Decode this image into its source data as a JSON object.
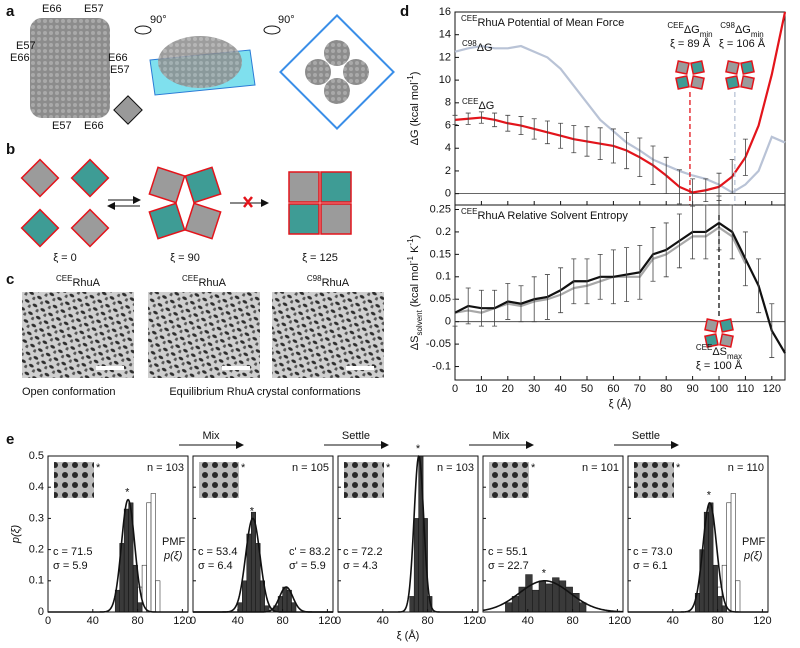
{
  "figure": {
    "panel_labels": [
      "a",
      "b",
      "c",
      "d",
      "e"
    ],
    "panel_a": {
      "residues": [
        "E66",
        "E57",
        "E57",
        "E66",
        "E66",
        "E57",
        "E57",
        "E66"
      ],
      "rotations": [
        "90°",
        "90°"
      ]
    },
    "panel_b": {
      "xi": [
        "ξ = 0",
        "ξ = 90",
        "ξ = 125"
      ]
    },
    "panel_c": {
      "titles": [
        [
          {
            "t": "CEE",
            "pos": "sup"
          },
          {
            "t": "RhuA"
          }
        ],
        [
          {
            "t": "CEE",
            "pos": "sup"
          },
          {
            "t": "RhuA"
          }
        ],
        [
          {
            "t": "C98",
            "pos": "sup"
          },
          {
            "t": "RhuA"
          }
        ]
      ],
      "captions": [
        "Open conformation",
        "Equilibrium RhuA crystal conformations"
      ]
    }
  },
  "chart_data": [
    {
      "type": "line",
      "title": [
        {
          "t": "CEE",
          "pos": "sup"
        },
        {
          "t": "RhuA Potential of Mean Force"
        }
      ],
      "ylabel": [
        {
          "t": "ΔG (kcal mol"
        },
        {
          "t": "-1",
          "pos": "sup"
        },
        {
          "t": ")"
        }
      ],
      "x": [
        0,
        5,
        10,
        15,
        20,
        25,
        30,
        35,
        40,
        45,
        50,
        55,
        60,
        65,
        70,
        75,
        80,
        85,
        90,
        95,
        100,
        105,
        110,
        115,
        120,
        125
      ],
      "xlim": [
        0,
        125
      ],
      "xticks": [
        0,
        10,
        20,
        30,
        40,
        50,
        60,
        70,
        80,
        90,
        100,
        110,
        120
      ],
      "xtick_labels": false,
      "ylim": [
        -1,
        16
      ],
      "yticks": [
        0,
        2,
        4,
        6,
        8,
        10,
        12,
        14,
        16
      ],
      "zero_line": true,
      "series": [
        {
          "label": [
            {
              "t": "C98",
              "pos": "sup"
            },
            {
              "t": "ΔG"
            }
          ],
          "color": "#b9c3d6",
          "values": [
            12.5,
            12.8,
            13.0,
            12.8,
            12.8,
            13.0,
            12.5,
            12.0,
            11.0,
            9.5,
            8.0,
            6.5,
            5.5,
            4.5,
            3.8,
            3.0,
            2.5,
            2.0,
            1.6,
            1.3,
            0.8,
            0.1,
            0.8,
            2.0,
            5.0,
            4.5
          ]
        },
        {
          "label": [
            {
              "t": "CEE",
              "pos": "sup"
            },
            {
              "t": "ΔG"
            }
          ],
          "color": "#e3141b",
          "values": [
            6.5,
            6.6,
            6.7,
            6.5,
            6.2,
            6.0,
            5.7,
            5.4,
            5.1,
            4.8,
            4.6,
            4.4,
            4.2,
            3.8,
            3.2,
            2.5,
            1.6,
            0.6,
            0.1,
            0.3,
            0.6,
            1.5,
            3.2,
            6.0,
            10.5,
            16
          ],
          "errors": [
            0.4,
            0.5,
            0.5,
            0.6,
            0.7,
            0.8,
            0.9,
            1.0,
            1.1,
            1.2,
            1.3,
            1.4,
            1.5,
            1.6,
            1.7,
            1.7,
            1.6,
            1.5,
            1.2,
            1.0,
            1.2,
            1.5,
            1.6,
            null,
            null,
            null
          ]
        }
      ],
      "annotations": [
        {
          "text": [
            [
              {
                "t": "CEE",
                "pos": "sup"
              },
              {
                "t": "ΔG"
              },
              {
                "t": "min",
                "pos": "sub"
              }
            ],
            [
              {
                "t": "ξ = 89 Å"
              }
            ]
          ],
          "x": 89,
          "color": "#e3141b"
        },
        {
          "text": [
            [
              {
                "t": "C98",
                "pos": "sup"
              },
              {
                "t": "ΔG"
              },
              {
                "t": "min",
                "pos": "sub"
              }
            ],
            [
              {
                "t": "ξ = 106 Å"
              }
            ]
          ],
          "x": 106,
          "color": "#b9c3d6"
        }
      ]
    },
    {
      "type": "line",
      "title": [
        {
          "t": "CEE",
          "pos": "sup"
        },
        {
          "t": "RhuA Relative Solvent Entropy"
        }
      ],
      "ylabel": [
        {
          "t": "ΔS"
        },
        {
          "t": "solvent",
          "pos": "sub"
        },
        {
          "t": " (kcal mol"
        },
        {
          "t": "-1",
          "pos": "sup"
        },
        {
          "t": " K"
        },
        {
          "t": "-1",
          "pos": "sup"
        },
        {
          "t": ")"
        }
      ],
      "xlabel": "ξ (Å)",
      "x": [
        0,
        5,
        10,
        15,
        20,
        25,
        30,
        35,
        40,
        45,
        50,
        55,
        60,
        65,
        70,
        75,
        80,
        85,
        90,
        95,
        100,
        105,
        110,
        115,
        120,
        125
      ],
      "xlim": [
        0,
        125
      ],
      "xticks": [
        0,
        10,
        20,
        30,
        40,
        50,
        60,
        70,
        80,
        90,
        100,
        110,
        120
      ],
      "ylim": [
        -0.13,
        0.26
      ],
      "yticks": [
        -0.1,
        -0.05,
        0,
        0.05,
        0.1,
        0.15,
        0.2,
        0.25
      ],
      "zero_line": true,
      "series": [
        {
          "color": "#a8a8a8",
          "values": [
            0.02,
            0.025,
            0.02,
            0.03,
            0.04,
            0.035,
            0.045,
            0.05,
            0.06,
            0.075,
            0.08,
            0.09,
            0.1,
            0.1,
            0.1,
            0.14,
            0.15,
            0.17,
            0.19,
            0.19,
            0.21,
            0.19,
            0.13,
            null,
            null,
            null
          ]
        },
        {
          "color": "#111111",
          "values": [
            0.02,
            0.035,
            0.03,
            0.03,
            0.045,
            0.04,
            0.05,
            0.055,
            0.07,
            0.09,
            0.09,
            0.1,
            0.1,
            0.105,
            0.11,
            0.15,
            0.16,
            0.18,
            0.2,
            0.2,
            0.22,
            0.2,
            0.14,
            0.08,
            -0.02,
            -0.07
          ],
          "errors": [
            0.03,
            0.04,
            0.04,
            0.04,
            0.04,
            0.04,
            0.05,
            0.05,
            0.05,
            0.05,
            0.05,
            0.05,
            0.06,
            0.06,
            0.06,
            0.06,
            0.06,
            0.06,
            0.06,
            0.06,
            0.06,
            0.06,
            0.06,
            0.06,
            0.06,
            null
          ]
        }
      ],
      "annotations": [
        {
          "text": [
            [
              {
                "t": "CEE",
                "pos": "sup"
              },
              {
                "t": "ΔS"
              },
              {
                "t": "max",
                "pos": "sub"
              }
            ],
            [
              {
                "t": "ξ = 100 Å"
              }
            ]
          ],
          "x": 100,
          "color": "#111111"
        }
      ]
    },
    {
      "type": "histogram",
      "xlim": [
        0,
        125
      ],
      "xticks": [
        0,
        40,
        80,
        120
      ],
      "ylim": [
        0,
        0.5
      ],
      "yticks": [
        0,
        0.1,
        0.2,
        0.3,
        0.4,
        0.5
      ],
      "ytick_labels": true,
      "ylabel": "p(ξ)",
      "color": "#3a3a3a",
      "n": "n = 103",
      "star": "*",
      "bins": [
        60,
        64,
        68,
        72,
        76,
        80,
        84
      ],
      "counts": [
        0.07,
        0.22,
        0.33,
        0.35,
        0.15,
        0.03
      ],
      "fits": [
        {
          "c": {
            "value": 71.5,
            "label": "c = 71.5"
          },
          "sigma": {
            "value": 5.9,
            "label": "σ = 5.9"
          },
          "peak": 0.36
        }
      ],
      "pmf": {
        "label": "PMF",
        "sublabel": "p(ξ)",
        "bins": [
          76,
          80,
          84,
          88,
          92,
          96,
          100
        ],
        "counts": [
          0.02,
          0.08,
          0.15,
          0.35,
          0.38,
          0.1
        ]
      }
    },
    {
      "type": "histogram",
      "xlim": [
        0,
        125
      ],
      "xticks": [
        0,
        40,
        80,
        120
      ],
      "ylim": [
        0,
        0.5
      ],
      "yticks": [
        0,
        0.1,
        0.2,
        0.3,
        0.4,
        0.5
      ],
      "color": "#3a3a3a",
      "n": "n = 105",
      "star": "*",
      "arrow": "Mix",
      "bins": [
        40,
        44,
        48,
        52,
        56,
        60,
        64,
        68,
        72,
        76,
        80,
        84,
        88,
        92
      ],
      "counts": [
        0.03,
        0.1,
        0.25,
        0.32,
        0.22,
        0.1,
        0.02,
        0,
        0.02,
        0.05,
        0.08,
        0.07,
        0.03
      ],
      "fits": [
        {
          "c": {
            "value": 53.4,
            "label": "c = 53.4"
          },
          "sigma": {
            "value": 6.4,
            "label": "σ = 6.4"
          },
          "peak": 0.3
        },
        {
          "c": {
            "value": 83.2,
            "label": "c' = 83.2"
          },
          "sigma": {
            "value": 5.9,
            "label": "σ' = 5.9"
          },
          "peak": 0.08
        }
      ]
    },
    {
      "type": "histogram",
      "xlim": [
        0,
        125
      ],
      "xticks": [
        0,
        40,
        80,
        120
      ],
      "ylim": [
        0,
        0.5
      ],
      "yticks": [
        0,
        0.1,
        0.2,
        0.3,
        0.4,
        0.5
      ],
      "xlabel": "ξ (Å)",
      "color": "#3a3a3a",
      "n": "n = 103",
      "star": "*",
      "arrow": "Settle",
      "bins": [
        64,
        68,
        72,
        76,
        80,
        84
      ],
      "counts": [
        0.05,
        0.3,
        0.5,
        0.3,
        0.05
      ],
      "fits": [
        {
          "c": {
            "value": 72.2,
            "label": "c = 72.2"
          },
          "sigma": {
            "value": 4.3,
            "label": "σ = 4.3"
          },
          "peak": 0.5
        }
      ]
    },
    {
      "type": "histogram",
      "xlim": [
        0,
        125
      ],
      "xticks": [
        0,
        40,
        80,
        120
      ],
      "ylim": [
        0,
        0.5
      ],
      "yticks": [
        0,
        0.1,
        0.2,
        0.3,
        0.4,
        0.5
      ],
      "color": "#3a3a3a",
      "n": "n = 101",
      "star": "*",
      "arrow": "Mix",
      "bins": [
        20,
        26,
        32,
        38,
        44,
        50,
        56,
        62,
        68,
        74,
        80,
        86,
        92
      ],
      "counts": [
        0.03,
        0.05,
        0.08,
        0.12,
        0.07,
        0.1,
        0.09,
        0.11,
        0.1,
        0.08,
        0.06,
        0.03
      ],
      "fits": [
        {
          "c": {
            "value": 55.1,
            "label": "c = 55.1"
          },
          "sigma": {
            "value": 22.7,
            "label": "σ = 22.7"
          },
          "peak": 0.1
        }
      ]
    },
    {
      "type": "histogram",
      "xlim": [
        0,
        125
      ],
      "xticks": [
        0,
        40,
        80,
        120
      ],
      "ylim": [
        0,
        0.5
      ],
      "yticks": [
        0,
        0.1,
        0.2,
        0.3,
        0.4,
        0.5
      ],
      "color": "#3a3a3a",
      "n": "n = 110",
      "star": "*",
      "arrow": "Settle",
      "bins": [
        60,
        64,
        68,
        72,
        76,
        80,
        84,
        88
      ],
      "counts": [
        0.06,
        0.2,
        0.32,
        0.35,
        0.15,
        0.05,
        0.02
      ],
      "fits": [
        {
          "c": {
            "value": 73.0,
            "label": "c = 73.0"
          },
          "sigma": {
            "value": 6.1,
            "label": "σ = 6.1"
          },
          "peak": 0.35
        }
      ],
      "pmf": {
        "label": "PMF",
        "sublabel": "p(ξ)",
        "bins": [
          76,
          80,
          84,
          88,
          92,
          96,
          100
        ],
        "counts": [
          0.02,
          0.08,
          0.15,
          0.35,
          0.38,
          0.1
        ]
      }
    }
  ]
}
